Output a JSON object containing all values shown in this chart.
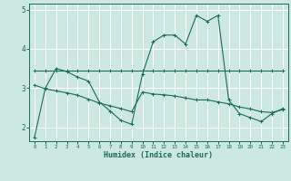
{
  "xlabel": "Humidex (Indice chaleur)",
  "bg_color": "#cce8e0",
  "line_color": "#1a6b5a",
  "grid_color": "#ffffff",
  "xlim": [
    -0.5,
    23.5
  ],
  "ylim": [
    1.65,
    5.15
  ],
  "yticks": [
    2,
    3,
    4,
    5
  ],
  "xticks": [
    0,
    1,
    2,
    3,
    4,
    5,
    6,
    7,
    8,
    9,
    10,
    11,
    12,
    13,
    14,
    15,
    16,
    17,
    18,
    19,
    20,
    21,
    22,
    23
  ],
  "line1_x": [
    0,
    1,
    2,
    3,
    4,
    5,
    6,
    7,
    8,
    9,
    10,
    11,
    12,
    13,
    14,
    15,
    16,
    17,
    18,
    19,
    20,
    21,
    22,
    23
  ],
  "line1_y": [
    1.75,
    3.0,
    3.5,
    3.42,
    3.28,
    3.18,
    2.65,
    2.42,
    2.18,
    2.08,
    3.35,
    4.18,
    4.35,
    4.35,
    4.12,
    4.85,
    4.7,
    4.85,
    2.7,
    2.35,
    2.25,
    2.15,
    2.35,
    2.48
  ],
  "line2_x": [
    0,
    1,
    2,
    3,
    4,
    5,
    6,
    7,
    8,
    9,
    10,
    11,
    12,
    13,
    14,
    15,
    16,
    17,
    18,
    19,
    20,
    21,
    22,
    23
  ],
  "line2_y": [
    3.45,
    3.45,
    3.45,
    3.45,
    3.45,
    3.45,
    3.45,
    3.45,
    3.45,
    3.45,
    3.45,
    3.45,
    3.45,
    3.45,
    3.45,
    3.45,
    3.45,
    3.45,
    3.45,
    3.45,
    3.45,
    3.45,
    3.45,
    3.45
  ],
  "line3_x": [
    0,
    1,
    2,
    3,
    4,
    5,
    6,
    7,
    8,
    9,
    10,
    11,
    12,
    13,
    14,
    15,
    16,
    17,
    18,
    19,
    20,
    21,
    22,
    23
  ],
  "line3_y": [
    3.08,
    2.98,
    2.93,
    2.88,
    2.82,
    2.72,
    2.62,
    2.55,
    2.48,
    2.4,
    2.9,
    2.85,
    2.83,
    2.8,
    2.75,
    2.7,
    2.7,
    2.65,
    2.6,
    2.52,
    2.47,
    2.4,
    2.38,
    2.45
  ]
}
